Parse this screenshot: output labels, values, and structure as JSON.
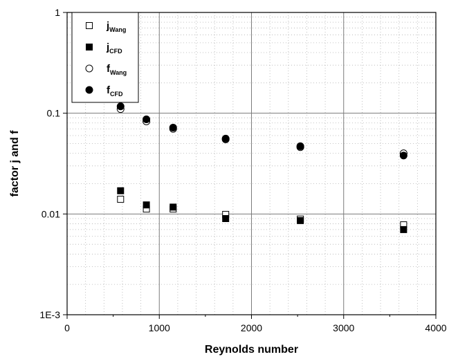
{
  "chart_data": {
    "type": "scatter",
    "title": "",
    "xlabel": "Reynolds number",
    "ylabel": "factor j and f",
    "xlim": [
      0,
      4000
    ],
    "ylim": [
      0.001,
      1
    ],
    "yscale": "log",
    "grid": true,
    "legend_position": "top-left",
    "x_ticks": [
      "0",
      "1000",
      "2000",
      "3000",
      "4000"
    ],
    "y_ticks": [
      "1E-3",
      "0.01",
      "0.1",
      "1"
    ],
    "series": [
      {
        "name": "j_Wang",
        "legend_main": "j",
        "legend_sub": "Wang",
        "marker": "open-square",
        "x": [
          580,
          860,
          1150,
          1720,
          2530,
          3650
        ],
        "y": [
          0.014,
          0.0112,
          0.0112,
          0.0099,
          0.0089,
          0.0078
        ]
      },
      {
        "name": "j_CFD",
        "legend_main": "j",
        "legend_sub": "CFD",
        "marker": "filled-square",
        "x": [
          580,
          860,
          1150,
          1720,
          2530,
          3650
        ],
        "y": [
          0.017,
          0.0123,
          0.0117,
          0.009,
          0.0086,
          0.007
        ]
      },
      {
        "name": "f_Wang",
        "legend_main": "f",
        "legend_sub": "Wang",
        "marker": "open-circle",
        "x": [
          580,
          860,
          1150,
          1720,
          2530,
          3650
        ],
        "y": [
          0.11,
          0.083,
          0.07,
          0.055,
          0.046,
          0.04
        ]
      },
      {
        "name": "f_CFD",
        "legend_main": "f",
        "legend_sub": "CFD",
        "marker": "filled-circle",
        "x": [
          580,
          860,
          1150,
          1720,
          2530,
          3650
        ],
        "y": [
          0.117,
          0.087,
          0.072,
          0.056,
          0.047,
          0.038
        ]
      }
    ]
  }
}
